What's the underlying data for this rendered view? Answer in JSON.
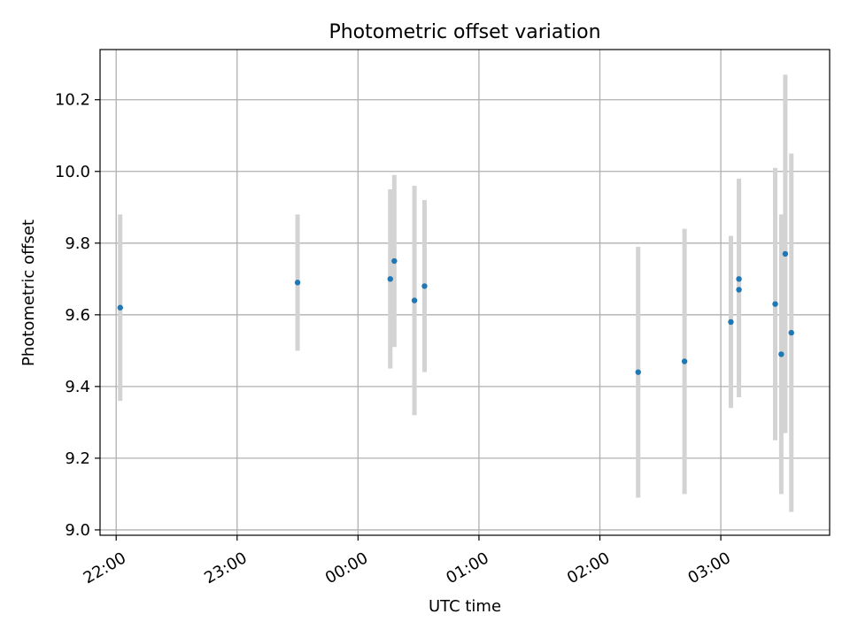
{
  "chart_data": {
    "type": "scatter",
    "title": "Photometric offset variation",
    "xlabel": "UTC time",
    "ylabel": "Photometric offset",
    "xlim": [
      "21:52",
      "03:54"
    ],
    "ylim": [
      8.985,
      10.34
    ],
    "grid": true,
    "x_ticks": [
      "22:00",
      "23:00",
      "00:00",
      "01:00",
      "02:00",
      "03:00"
    ],
    "y_ticks": [
      "9.0",
      "9.2",
      "9.4",
      "9.6",
      "9.8",
      "10.0",
      "10.2"
    ],
    "colors": {
      "point": "#1f77b4",
      "errorbar": "#d3d3d3",
      "grid": "#b0b0b0"
    },
    "points": [
      {
        "x": "22:02",
        "y": 9.62,
        "yerr": 0.26
      },
      {
        "x": "23:30",
        "y": 9.69,
        "yerr": 0.19
      },
      {
        "x": "00:16",
        "y": 9.7,
        "yerr": 0.25
      },
      {
        "x": "00:18",
        "y": 9.75,
        "yerr": 0.24
      },
      {
        "x": "00:28",
        "y": 9.64,
        "yerr": 0.32
      },
      {
        "x": "00:33",
        "y": 9.68,
        "yerr": 0.24
      },
      {
        "x": "02:19",
        "y": 9.44,
        "yerr": 0.35
      },
      {
        "x": "02:42",
        "y": 9.47,
        "yerr": 0.37
      },
      {
        "x": "03:05",
        "y": 9.58,
        "yerr": 0.24
      },
      {
        "x": "03:09",
        "y": 9.7,
        "yerr": 0.28
      },
      {
        "x": "03:09",
        "y": 9.67,
        "yerr": 0.3
      },
      {
        "x": "03:27",
        "y": 9.63,
        "yerr": 0.38
      },
      {
        "x": "03:30",
        "y": 9.49,
        "yerr": 0.39
      },
      {
        "x": "03:32",
        "y": 9.77,
        "yerr": 0.5
      },
      {
        "x": "03:35",
        "y": 9.55,
        "yerr": 0.5
      }
    ]
  }
}
